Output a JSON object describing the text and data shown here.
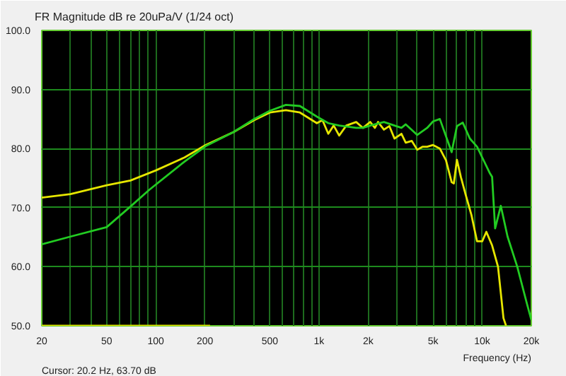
{
  "chart_data": {
    "type": "line",
    "title": "FR Magnitude dB re 20uPa/V (1/24 oct)",
    "xlabel": "Frequency (Hz)",
    "annotations": [
      "Cursor: 20.2 Hz, 63.70 dB"
    ],
    "log": "x",
    "grid": true,
    "marker": "none",
    "line_style": "solid",
    "xlim": [
      20,
      20000
    ],
    "ylim": [
      50,
      100
    ],
    "xticks": [
      20,
      {
        "value": 30,
        "label": null
      },
      {
        "value": 40,
        "label": null
      },
      50,
      {
        "value": 60,
        "label": null
      },
      {
        "value": 70,
        "label": null
      },
      {
        "value": 80,
        "label": null
      },
      {
        "value": 90,
        "label": null
      },
      100,
      200,
      {
        "value": 300,
        "label": null
      },
      {
        "value": 400,
        "label": null
      },
      500,
      {
        "value": 600,
        "label": null
      },
      {
        "value": 700,
        "label": null
      },
      {
        "value": 800,
        "label": null
      },
      {
        "value": 900,
        "label": null
      },
      {
        "value": 1000,
        "label": "1k"
      },
      {
        "value": 2000,
        "label": "2k"
      },
      {
        "value": 3000,
        "label": null
      },
      {
        "value": 4000,
        "label": null
      },
      {
        "value": 5000,
        "label": "5k"
      },
      {
        "value": 6000,
        "label": null
      },
      {
        "value": 7000,
        "label": null
      },
      {
        "value": 8000,
        "label": null
      },
      {
        "value": 9000,
        "label": null
      },
      {
        "value": 10000,
        "label": "10k"
      },
      {
        "value": 20000,
        "label": "20k"
      }
    ],
    "yticks": [
      {
        "value": 50,
        "label": "50.0"
      },
      {
        "value": 60,
        "label": "60.0"
      },
      {
        "value": 70,
        "label": "70.0"
      },
      {
        "value": 80,
        "label": "80.0"
      },
      {
        "value": 90,
        "label": "90.0"
      },
      {
        "value": 100,
        "label": "100.0"
      }
    ],
    "series": [
      {
        "color": "#e6e600",
        "x": [
          20,
          30,
          50,
          70,
          100,
          150,
          202,
          300,
          400,
          500,
          627,
          764,
          970,
          1050,
          1140,
          1230,
          1330,
          1470,
          1690,
          1860,
          2060,
          2200,
          2300,
          2500,
          2700,
          2900,
          3200,
          3400,
          3700,
          4000,
          4300,
          4600,
          5000,
          5500,
          6000,
          6500,
          6700,
          7000,
          7400,
          7900,
          8600,
          9300,
          10000,
          10600,
          11500,
          12500,
          13500,
          14000
        ],
        "values": [
          71.7,
          72.3,
          73.8,
          74.6,
          76.3,
          78.5,
          80.6,
          82.8,
          84.8,
          86.1,
          86.5,
          86.1,
          84.3,
          84.8,
          82.5,
          83.9,
          82.2,
          83.9,
          84.5,
          83.5,
          84.5,
          83.5,
          84.5,
          83.2,
          83.8,
          81.7,
          82.5,
          81.0,
          81.3,
          79.8,
          80.3,
          80.3,
          80.6,
          80.0,
          78.0,
          74.3,
          74.1,
          78.1,
          75.2,
          72.3,
          68.7,
          64.3,
          64.3,
          65.9,
          63.6,
          60.0,
          51.3,
          50.0
        ]
      },
      {
        "color": "#22cc22",
        "x": [
          20,
          30,
          50,
          70,
          91,
          150,
          202,
          300,
          400,
          500,
          627,
          764,
          970,
          1140,
          1330,
          1690,
          1860,
          2060,
          2500,
          2900,
          3200,
          3400,
          4000,
          4600,
          5000,
          5500,
          6500,
          7000,
          7600,
          8400,
          9300,
          10000,
          11100,
          11500,
          12000,
          13000,
          14300,
          16400,
          18900,
          20000
        ],
        "values": [
          63.8,
          65.1,
          66.7,
          70.2,
          73.0,
          77.8,
          80.4,
          82.8,
          85.0,
          86.4,
          87.4,
          87.2,
          85.4,
          84.3,
          83.9,
          83.5,
          83.5,
          83.9,
          84.5,
          83.9,
          83.5,
          84.1,
          82.3,
          83.5,
          84.6,
          85.0,
          79.4,
          83.8,
          84.4,
          81.7,
          80.3,
          78.5,
          75.9,
          75.2,
          66.5,
          70.3,
          65.1,
          60.0,
          53.5,
          51.0
        ]
      },
      {
        "color": "#e6e600",
        "x": [
          20,
          215
        ],
        "values": [
          50,
          50
        ]
      }
    ]
  }
}
